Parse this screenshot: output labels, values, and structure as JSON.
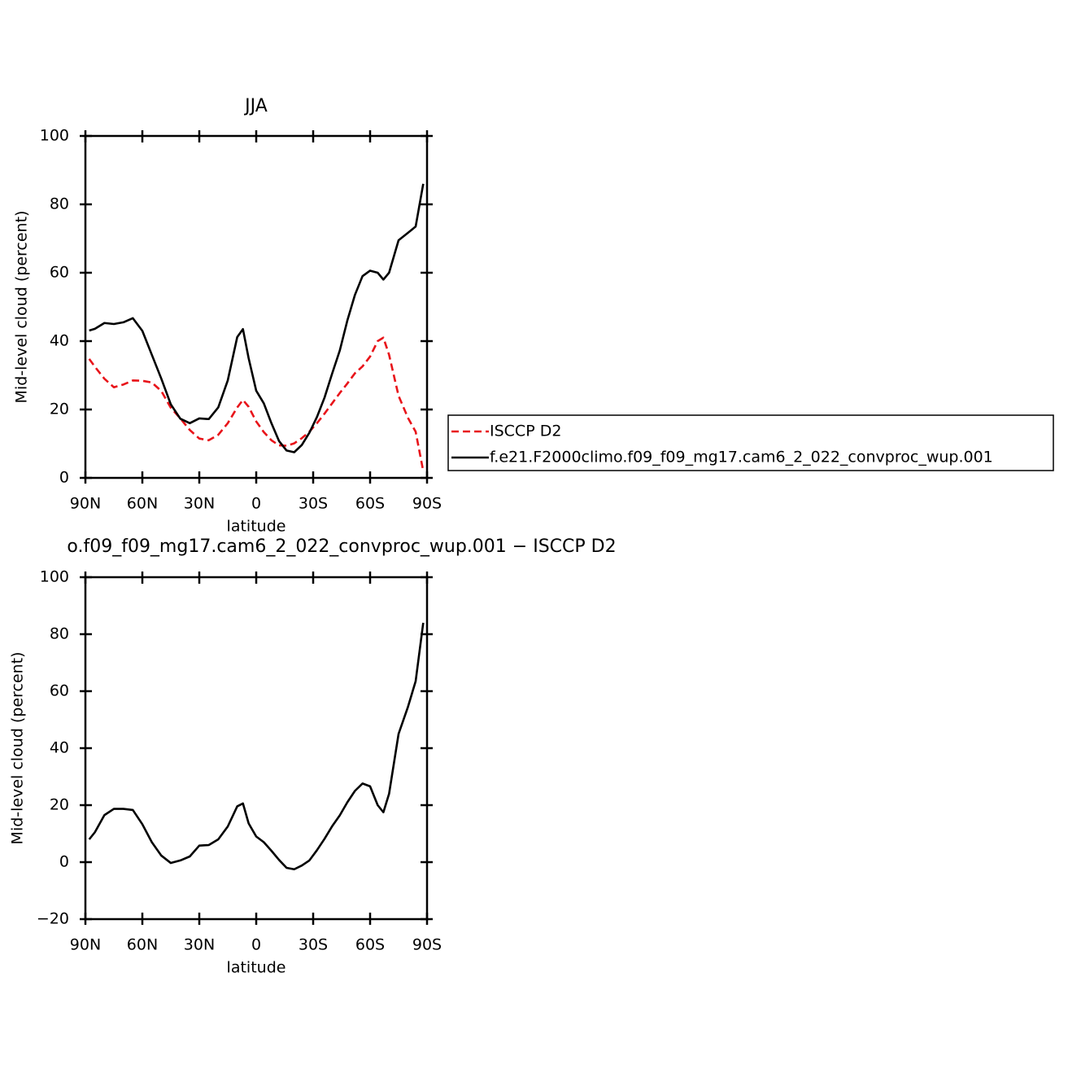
{
  "chart_data": [
    {
      "type": "line",
      "title": "JJA",
      "xlabel": "latitude",
      "ylabel": "Mid-level cloud (percent)",
      "x": [
        88,
        85,
        80,
        75,
        70,
        65,
        60,
        55,
        50,
        45,
        40,
        35,
        30,
        25,
        20,
        15,
        10,
        7,
        4,
        0,
        -4,
        -8,
        -12,
        -16,
        -20,
        -24,
        -28,
        -32,
        -36,
        -40,
        -44,
        -48,
        -52,
        -56,
        -60,
        -64,
        -67,
        -70,
        -75,
        -80,
        -84,
        -88
      ],
      "series": [
        {
          "name": "ISCCP D2",
          "color": "#e8141a",
          "dash": true,
          "values": [
            34.8,
            32.5,
            29,
            26.5,
            27.3,
            28.5,
            28.4,
            27.9,
            25.4,
            20.5,
            17.4,
            14,
            11.5,
            11,
            12.6,
            16,
            20.6,
            22.8,
            20.8,
            16.5,
            13.4,
            11,
            9.5,
            9.4,
            10.1,
            11.6,
            13.5,
            16,
            18.8,
            21.8,
            24.8,
            27.6,
            30.6,
            32.6,
            35.5,
            40,
            41,
            36,
            24,
            17.5,
            13.5,
            2
          ]
        },
        {
          "name": "f.e21.F2000climo.f09_f09_mg17.cam6_2_022_convproc_wup.001",
          "color": "#000000",
          "dash": false,
          "values": [
            43.1,
            43.6,
            45.3,
            45,
            45.5,
            46.7,
            43,
            36,
            29,
            21.5,
            17.3,
            16,
            17.4,
            17.2,
            20.6,
            28.5,
            41.2,
            43.5,
            35,
            25.5,
            21.8,
            16,
            10.8,
            8,
            7.5,
            9.6,
            13.2,
            17.8,
            23.5,
            30.5,
            37.2,
            46,
            53.5,
            59,
            60.6,
            60,
            58,
            60,
            69.5,
            71.7,
            73.5,
            86
          ]
        }
      ],
      "xlim": [
        90,
        -90
      ],
      "xticks": [
        {
          "value": 90,
          "label": "90N"
        },
        {
          "value": 60,
          "label": "60N"
        },
        {
          "value": 30,
          "label": "30N"
        },
        0,
        {
          "value": -30,
          "label": "30S"
        },
        {
          "value": -60,
          "label": "60S"
        },
        {
          "value": -90,
          "label": "90S"
        }
      ],
      "ylim": [
        0,
        100
      ],
      "yticks": [
        0,
        20,
        40,
        60,
        80,
        100
      ],
      "legend": "right"
    },
    {
      "type": "line",
      "title": "o.f09_f09_mg17.cam6_2_022_convproc_wup.001 − ISCCP D2",
      "xlabel": "latitude",
      "ylabel": "Mid-level cloud (percent)",
      "x": [
        88,
        85,
        80,
        75,
        70,
        65,
        60,
        55,
        50,
        45,
        40,
        35,
        30,
        25,
        20,
        15,
        10,
        7,
        4,
        0,
        -4,
        -8,
        -12,
        -16,
        -20,
        -24,
        -28,
        -32,
        -36,
        -40,
        -44,
        -48,
        -52,
        -56,
        -60,
        -64,
        -67,
        -70,
        -75,
        -80,
        -84,
        -88
      ],
      "series": [
        {
          "color": "#000000",
          "dash": false,
          "values": [
            8,
            10.5,
            16.5,
            18.7,
            18.7,
            18.3,
            13.3,
            7,
            2.3,
            -0.3,
            0.6,
            2,
            5.8,
            6,
            8,
            12.5,
            19.6,
            20.6,
            13.6,
            9,
            7,
            4,
            0.8,
            -2,
            -2.5,
            -1.2,
            0.6,
            4.2,
            8.2,
            12.6,
            16.4,
            21,
            25,
            27.6,
            26.6,
            20,
            17.5,
            24,
            45,
            54.6,
            63.5,
            84
          ]
        }
      ],
      "xlim": [
        90,
        -90
      ],
      "xticks": [
        {
          "value": 90,
          "label": "90N"
        },
        {
          "value": 60,
          "label": "60N"
        },
        {
          "value": 30,
          "label": "30N"
        },
        0,
        {
          "value": -30,
          "label": "30S"
        },
        {
          "value": -60,
          "label": "60S"
        },
        {
          "value": -90,
          "label": "90S"
        }
      ],
      "ylim": [
        -20,
        100
      ],
      "yticks": [
        {
          "value": -20,
          "label": "−20"
        },
        0,
        20,
        40,
        60,
        80,
        100
      ]
    }
  ]
}
